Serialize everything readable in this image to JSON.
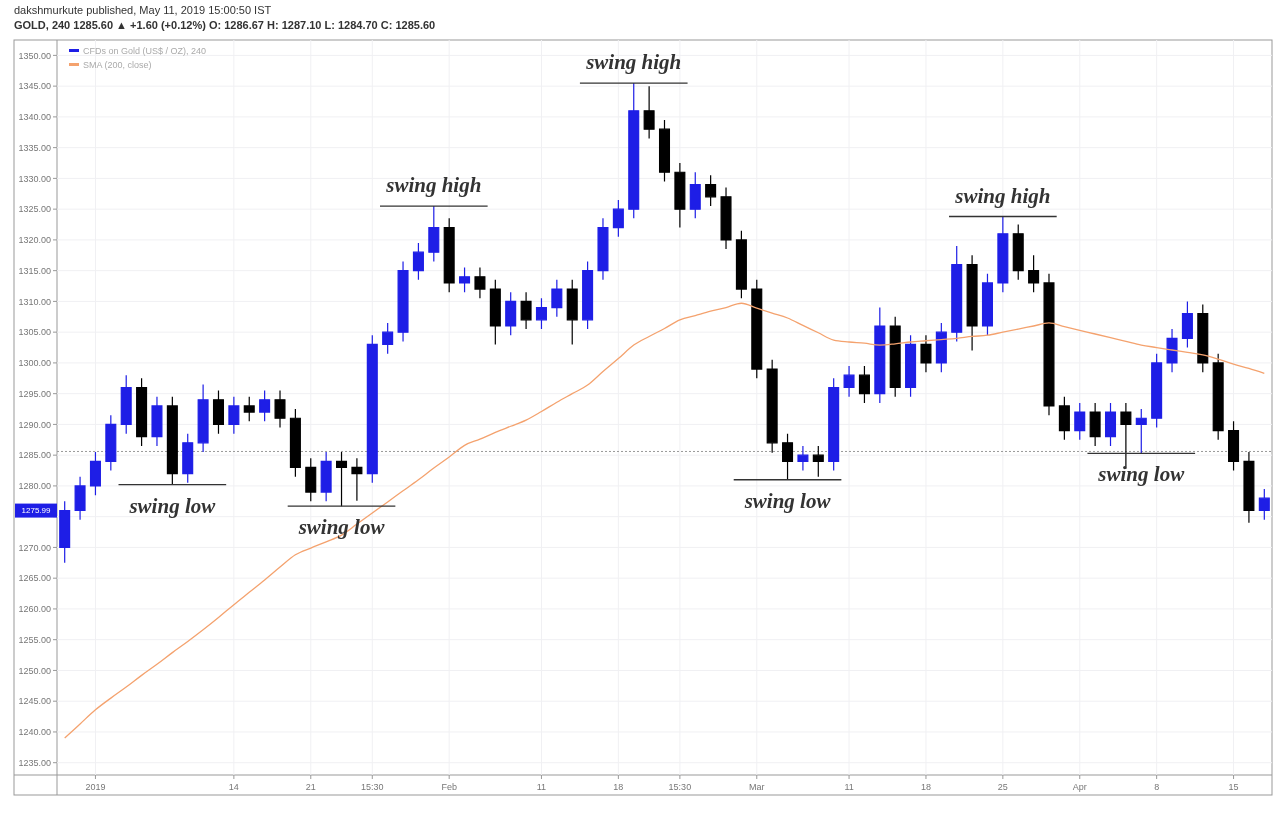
{
  "chart_data": {
    "type": "candlestick",
    "title": "dakshmurkute published, May 11, 2019 15:00:50 IST",
    "subtitle": "GOLD, 240 1285.60 ▲ +1.60 (+0.12%) O: 1286.67 H: 1287.10 L: 1284.70 C: 1285.60",
    "legend": "top left",
    "grid": true,
    "categories": [
      null,
      null,
      "2019",
      null,
      null,
      null,
      null,
      null,
      null,
      null,
      null,
      "14",
      null,
      null,
      null,
      null,
      "21",
      null,
      null,
      null,
      "15:30",
      null,
      null,
      null,
      null,
      "Feb",
      null,
      null,
      null,
      null,
      null,
      "11",
      null,
      null,
      null,
      null,
      "18",
      null,
      null,
      null,
      "15:30",
      null,
      null,
      null,
      null,
      "Mar",
      null,
      null,
      null,
      null,
      null,
      "11",
      null,
      null,
      null,
      null,
      "18",
      null,
      null,
      null,
      null,
      "25",
      null,
      null,
      null,
      null,
      "Apr",
      null,
      null,
      null,
      null,
      "8",
      null,
      null,
      null,
      null,
      "15",
      null,
      null
    ],
    "ylim": [
      1233,
      1352.5
    ],
    "yticks": [
      {
        "value": 1235,
        "label": "1235.00"
      },
      {
        "value": 1240,
        "label": "1240.00"
      },
      {
        "value": 1245,
        "label": "1245.00"
      },
      {
        "value": 1250,
        "label": "1250.00"
      },
      {
        "value": 1255,
        "label": "1255.00"
      },
      {
        "value": 1260,
        "label": "1260.00"
      },
      {
        "value": 1265,
        "label": "1265.00"
      },
      {
        "value": 1270,
        "label": "1270.00"
      },
      {
        "value": 1275,
        "label": null
      },
      {
        "value": 1280,
        "label": "1280.00"
      },
      {
        "value": 1285,
        "label": "1285.00"
      },
      {
        "value": 1290,
        "label": "1290.00"
      },
      {
        "value": 1295,
        "label": "1295.00"
      },
      {
        "value": 1300,
        "label": "1300.00"
      },
      {
        "value": 1305,
        "label": "1305.00"
      },
      {
        "value": 1310,
        "label": "1310.00"
      },
      {
        "value": 1315,
        "label": "1315.00"
      },
      {
        "value": 1320,
        "label": "1320.00"
      },
      {
        "value": 1325,
        "label": "1325.00"
      },
      {
        "value": 1330,
        "label": "1330.00"
      },
      {
        "value": 1335,
        "label": "1335.00"
      },
      {
        "value": 1340,
        "label": "1340.00"
      },
      {
        "value": 1345,
        "label": "1345.00"
      },
      {
        "value": 1350,
        "label": "1350.00"
      }
    ],
    "ref_lines": [
      {
        "axis": "y",
        "value": 1285.6,
        "line_style": "dotted",
        "color": "#9a9a9a"
      }
    ],
    "annotations": [
      {
        "text": "1275.99",
        "y": 1275.99
      },
      {
        "text": "swing low",
        "y": 1280.2
      },
      {
        "text": "swing low",
        "y": 1276.7
      },
      {
        "text": "swing high",
        "y": 1325.5
      },
      {
        "text": "swing high",
        "y": 1345.5
      },
      {
        "text": "swing low",
        "y": 1281
      },
      {
        "text": "swing high",
        "y": 1323.8
      },
      {
        "text": "swing low",
        "y": 1285.3
      }
    ],
    "series": [
      {
        "name": "CFDs on Gold (US$ / OZ), 240",
        "ohlc": [
          [
            1270,
            1277.5,
            1267.5,
            1276
          ],
          [
            1276,
            1281.5,
            1274.5,
            1280
          ],
          [
            1280,
            1285.5,
            1278.5,
            1284
          ],
          [
            1284,
            1291.5,
            1282.5,
            1290
          ],
          [
            1290,
            1298,
            1288.5,
            1296
          ],
          [
            1296,
            1297.5,
            1286.5,
            1288
          ],
          [
            1288,
            1294.5,
            1286.5,
            1293
          ],
          [
            1293,
            1294.5,
            1280.2,
            1282
          ],
          [
            1282,
            1288.5,
            1280.5,
            1287
          ],
          [
            1287,
            1296.5,
            1285.5,
            1294
          ],
          [
            1294,
            1295.5,
            1288.5,
            1290
          ],
          [
            1290,
            1294.5,
            1288.5,
            1293
          ],
          [
            1293,
            1294.5,
            1290.5,
            1292
          ],
          [
            1292,
            1295.5,
            1290.5,
            1294
          ],
          [
            1294,
            1295.5,
            1289.5,
            1291
          ],
          [
            1291,
            1292.5,
            1281.5,
            1283
          ],
          [
            1283,
            1284.5,
            1277.5,
            1279
          ],
          [
            1279,
            1285.5,
            1277.5,
            1284
          ],
          [
            1284,
            1285.5,
            1276.7,
            1283
          ],
          [
            1283,
            1284.5,
            1277.6,
            1282
          ],
          [
            1282,
            1304.5,
            1280.5,
            1303
          ],
          [
            1303,
            1306.5,
            1301.5,
            1305
          ],
          [
            1305,
            1316.5,
            1303.5,
            1315
          ],
          [
            1315,
            1319.5,
            1313.5,
            1318
          ],
          [
            1318,
            1325.5,
            1316.5,
            1322
          ],
          [
            1322,
            1323.5,
            1311.5,
            1313
          ],
          [
            1313,
            1315.5,
            1311.5,
            1314
          ],
          [
            1314,
            1315.5,
            1310.5,
            1312
          ],
          [
            1312,
            1313.5,
            1303,
            1306
          ],
          [
            1306,
            1311.5,
            1304.5,
            1310
          ],
          [
            1310,
            1311.5,
            1305.5,
            1307
          ],
          [
            1307,
            1310.5,
            1305.5,
            1309
          ],
          [
            1309,
            1313.5,
            1307.5,
            1312
          ],
          [
            1312,
            1313.5,
            1303,
            1307
          ],
          [
            1307,
            1316.5,
            1305.5,
            1315
          ],
          [
            1315,
            1323.5,
            1313.5,
            1322
          ],
          [
            1322,
            1326.5,
            1320.5,
            1325
          ],
          [
            1325,
            1345.5,
            1323.5,
            1341
          ],
          [
            1341,
            1345,
            1336.5,
            1338
          ],
          [
            1338,
            1339.5,
            1329.5,
            1331
          ],
          [
            1331,
            1332.5,
            1322,
            1325
          ],
          [
            1325,
            1331,
            1323.5,
            1329
          ],
          [
            1329,
            1330.5,
            1325.5,
            1327
          ],
          [
            1327,
            1328.5,
            1318.5,
            1320
          ],
          [
            1320,
            1321.5,
            1310.5,
            1312
          ],
          [
            1312,
            1313.5,
            1297.5,
            1299
          ],
          [
            1299,
            1300.5,
            1285.4,
            1287
          ],
          [
            1287,
            1288.5,
            1281,
            1284
          ],
          [
            1284,
            1286.5,
            1282.5,
            1285
          ],
          [
            1285,
            1286.5,
            1281.5,
            1284
          ],
          [
            1284,
            1297.5,
            1282.5,
            1296
          ],
          [
            1296,
            1299.5,
            1294.5,
            1298
          ],
          [
            1298,
            1299.5,
            1293.5,
            1295
          ],
          [
            1295,
            1309,
            1293.5,
            1306
          ],
          [
            1306,
            1307.5,
            1294.5,
            1296
          ],
          [
            1296,
            1304.5,
            1294.5,
            1303
          ],
          [
            1303,
            1304.5,
            1298.5,
            1300
          ],
          [
            1300,
            1306.5,
            1298.5,
            1305
          ],
          [
            1305,
            1319,
            1303.5,
            1316
          ],
          [
            1316,
            1317.5,
            1302,
            1306
          ],
          [
            1306,
            1314.5,
            1304.5,
            1313
          ],
          [
            1313,
            1323.8,
            1311.5,
            1321
          ],
          [
            1321,
            1322.5,
            1313.5,
            1315
          ],
          [
            1315,
            1317.5,
            1311.5,
            1313
          ],
          [
            1313,
            1314.5,
            1291.5,
            1293
          ],
          [
            1293,
            1294.5,
            1287.5,
            1289
          ],
          [
            1289,
            1293.5,
            1287.5,
            1292
          ],
          [
            1292,
            1293.5,
            1286.5,
            1288
          ],
          [
            1288,
            1293.5,
            1286.5,
            1292
          ],
          [
            1292,
            1293.5,
            1282.8,
            1290
          ],
          [
            1290,
            1292.5,
            1285.3,
            1291
          ],
          [
            1291,
            1301.5,
            1289.5,
            1300
          ],
          [
            1300,
            1305.5,
            1298.5,
            1304
          ],
          [
            1304,
            1310,
            1302.5,
            1308
          ],
          [
            1308,
            1309.5,
            1298.5,
            1300
          ],
          [
            1300,
            1301.5,
            1287.5,
            1289
          ],
          [
            1289,
            1290.5,
            1282.5,
            1284
          ],
          [
            1284,
            1285.5,
            1274,
            1276
          ],
          [
            1276,
            1279.5,
            1274.5,
            1278
          ]
        ],
        "colors": [
          "#1e1ee6",
          "#1e1ee6",
          "#1e1ee6",
          "#1e1ee6",
          "#1e1ee6",
          "#000000",
          "#1e1ee6",
          "#000000",
          "#1e1ee6",
          "#1e1ee6",
          "#000000",
          "#1e1ee6",
          "#000000",
          "#1e1ee6",
          "#000000",
          "#000000",
          "#000000",
          "#1e1ee6",
          "#000000",
          "#000000",
          "#1e1ee6",
          "#1e1ee6",
          "#1e1ee6",
          "#1e1ee6",
          "#1e1ee6",
          "#000000",
          "#1e1ee6",
          "#000000",
          "#000000",
          "#1e1ee6",
          "#000000",
          "#1e1ee6",
          "#1e1ee6",
          "#000000",
          "#1e1ee6",
          "#1e1ee6",
          "#1e1ee6",
          "#1e1ee6",
          "#000000",
          "#000000",
          "#000000",
          "#1e1ee6",
          "#000000",
          "#000000",
          "#000000",
          "#000000",
          "#000000",
          "#000000",
          "#1e1ee6",
          "#000000",
          "#1e1ee6",
          "#1e1ee6",
          "#000000",
          "#1e1ee6",
          "#000000",
          "#1e1ee6",
          "#000000",
          "#1e1ee6",
          "#1e1ee6",
          "#000000",
          "#1e1ee6",
          "#1e1ee6",
          "#000000",
          "#000000",
          "#000000",
          "#000000",
          "#1e1ee6",
          "#000000",
          "#1e1ee6",
          "#000000",
          "#1e1ee6",
          "#1e1ee6",
          "#1e1ee6",
          "#1e1ee6",
          "#000000",
          "#000000",
          "#000000",
          "#000000",
          "#1e1ee6"
        ]
      },
      {
        "type": "line",
        "name": "SMA (200, close)",
        "color": "#f4a26e",
        "values": [
          1239,
          1241.3,
          1243.6,
          1245.5,
          1247.3,
          1249.2,
          1251,
          1252.9,
          1254.7,
          1256.6,
          1258.6,
          1260.7,
          1262.7,
          1264.7,
          1266.8,
          1268.8,
          1269.9,
          1270.9,
          1272,
          1273.8,
          1275.6,
          1277.4,
          1279.2,
          1281,
          1282.9,
          1284.7,
          1286.6,
          1287.6,
          1288.7,
          1289.7,
          1290.7,
          1292.1,
          1293.6,
          1295,
          1296.4,
          1298.6,
          1300.7,
          1302.9,
          1304.3,
          1305.6,
          1307,
          1307.7,
          1308.4,
          1309,
          1309.7,
          1308.9,
          1308.1,
          1307.3,
          1306.1,
          1304.9,
          1303.7,
          1303.4,
          1303.2,
          1302.9,
          1303.1,
          1303.4,
          1303.6,
          1303.8,
          1304,
          1304.3,
          1304.5,
          1305,
          1305.5,
          1306,
          1306.5,
          1305.9,
          1305.3,
          1304.7,
          1304.1,
          1303.5,
          1302.9,
          1302.5,
          1302.1,
          1301.7,
          1301.3,
          1300.6,
          1299.8,
          1299.1,
          1298.3
        ]
      }
    ]
  }
}
